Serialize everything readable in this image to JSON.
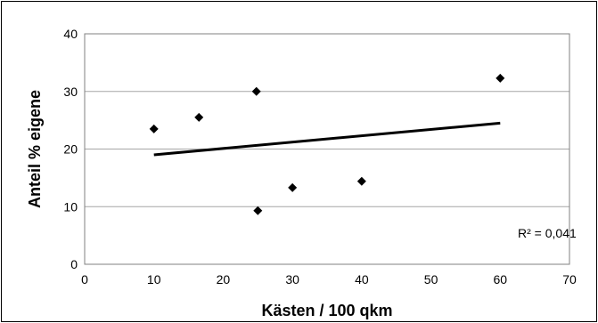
{
  "chart_data": {
    "type": "scatter",
    "title": "",
    "xlabel": "Kästen / 100 qkm",
    "ylabel": "Anteil % eigene",
    "xlim": [
      0,
      70
    ],
    "ylim": [
      0,
      40
    ],
    "x_ticks": [
      "0",
      "10",
      "20",
      "30",
      "40",
      "50",
      "60",
      "70"
    ],
    "y_ticks": [
      "0",
      "10",
      "20",
      "30",
      "40"
    ],
    "grid": "horizontal",
    "legend": "none",
    "series": [
      {
        "points": [
          {
            "x": 10,
            "y": 23.5
          },
          {
            "x": 16.5,
            "y": 25.5
          },
          {
            "x": 24.8,
            "y": 30
          },
          {
            "x": 25,
            "y": 9.3
          },
          {
            "x": 30,
            "y": 13.3
          },
          {
            "x": 40,
            "y": 14.4
          },
          {
            "x": 60,
            "y": 32.3
          }
        ],
        "marker": "diamond",
        "color": "#000000"
      }
    ],
    "trendline": {
      "type": "linear",
      "from": {
        "x": 10,
        "y": 19
      },
      "to": {
        "x": 60,
        "y": 24.5
      },
      "color": "#000000"
    },
    "annotation": "R² = 0,041",
    "plot_background": "#ffffff",
    "grid_color": "#a6a6a6",
    "frame_color": "#808080"
  }
}
